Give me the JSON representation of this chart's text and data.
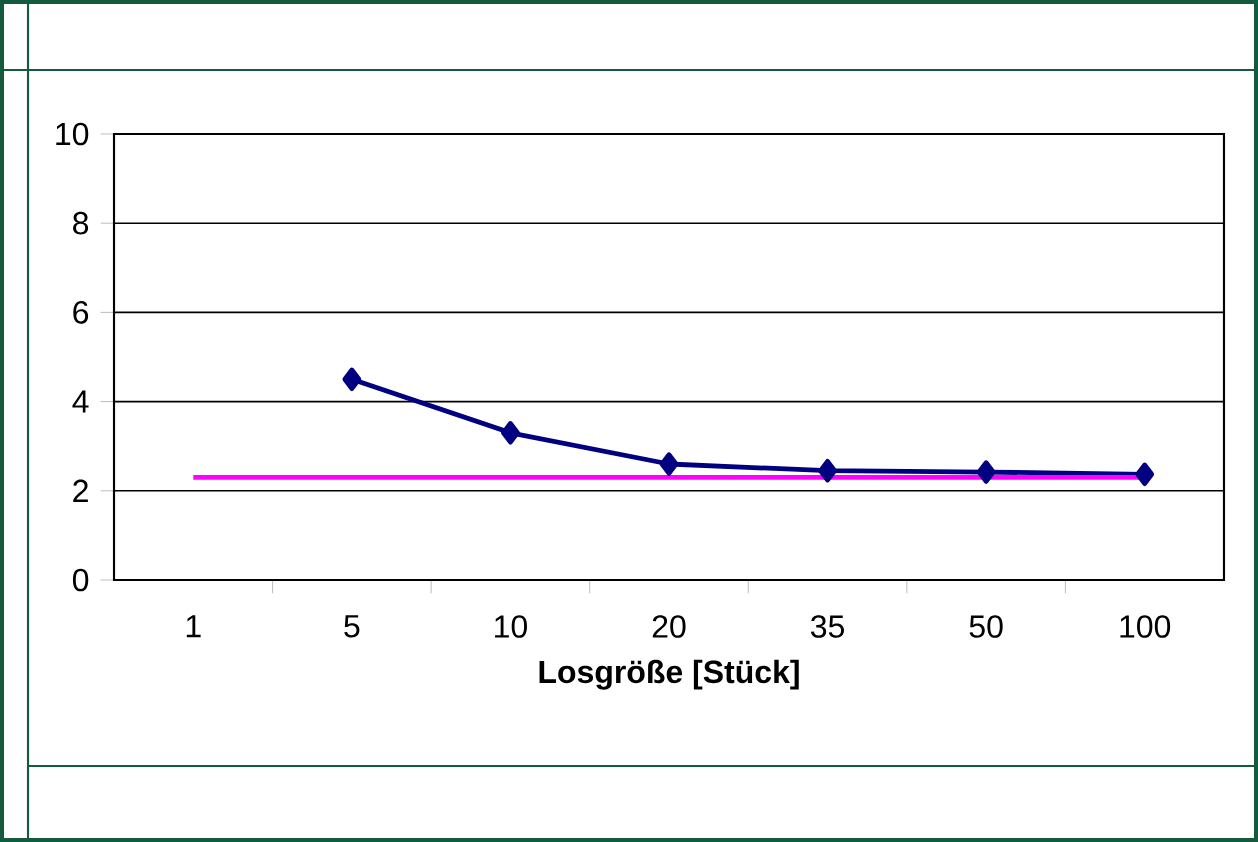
{
  "chart_data": {
    "type": "line",
    "xlabel": "Losgröße [Stück]",
    "categories": [
      "1",
      "5",
      "10",
      "20",
      "35",
      "50",
      "100"
    ],
    "series": [
      {
        "color": "#000080",
        "marker": "diamond",
        "values": [
          null,
          4.5,
          3.3,
          2.6,
          2.45,
          2.42,
          2.37
        ]
      },
      {
        "color": "#ff00ff",
        "marker": "none",
        "values": [
          2.3,
          2.3,
          2.3,
          2.3,
          2.3,
          2.3,
          2.3
        ]
      }
    ],
    "ylim": [
      0,
      10
    ],
    "yticks": [
      0,
      2,
      4,
      6,
      8,
      10
    ],
    "grid": "y"
  }
}
